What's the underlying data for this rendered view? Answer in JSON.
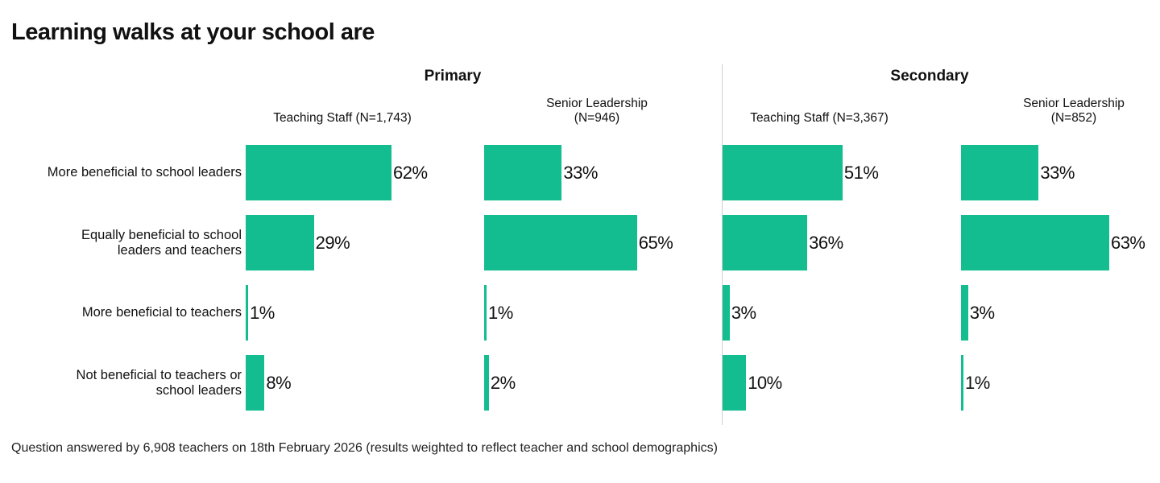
{
  "title": "Learning walks at your school are",
  "footnote": "Question answered by 6,908 teachers on 18th February 2026 (results weighted to reflect teacher and school demographics)",
  "colors": {
    "bar": "#13bd8f",
    "divider": "#cfcfcf"
  },
  "chart_data": {
    "type": "bar",
    "orientation": "horizontal",
    "title": "Learning walks at your school are",
    "categories": [
      "More beneficial to school leaders",
      "Equally beneficial to school leaders and teachers",
      "More beneficial to teachers",
      "Not beneficial to teachers or school leaders"
    ],
    "category_lines": [
      [
        "More beneficial to school leaders"
      ],
      [
        "Equally beneficial to school",
        "leaders and teachers"
      ],
      [
        "More beneficial to teachers"
      ],
      [
        "Not beneficial to teachers or",
        "school leaders"
      ]
    ],
    "groups": [
      {
        "name": "Primary",
        "panels": [
          {
            "name": "Teaching Staff (N=1,743)",
            "name_lines": [
              "Teaching Staff (N=1,743)"
            ],
            "values": [
              62,
              29,
              1,
              8
            ],
            "labels": [
              "62%",
              "29%",
              "1%",
              "8%"
            ]
          },
          {
            "name": "Senior Leadership (N=946)",
            "name_lines": [
              "Senior Leadership",
              "(N=946)"
            ],
            "values": [
              33,
              65,
              1,
              2
            ],
            "labels": [
              "33%",
              "65%",
              "1%",
              "2%"
            ]
          }
        ]
      },
      {
        "name": "Secondary",
        "panels": [
          {
            "name": "Teaching Staff (N=3,367)",
            "name_lines": [
              "Teaching Staff (N=3,367)"
            ],
            "values": [
              51,
              36,
              3,
              10
            ],
            "labels": [
              "51%",
              "36%",
              "3%",
              "10%"
            ]
          },
          {
            "name": "Senior Leadership (N=852)",
            "name_lines": [
              "Senior Leadership",
              "(N=852)"
            ],
            "values": [
              33,
              63,
              3,
              1
            ],
            "labels": [
              "33%",
              "63%",
              "3%",
              "1%"
            ]
          }
        ]
      }
    ],
    "xlim": [
      0,
      100
    ],
    "grid": false,
    "legend": "none"
  }
}
